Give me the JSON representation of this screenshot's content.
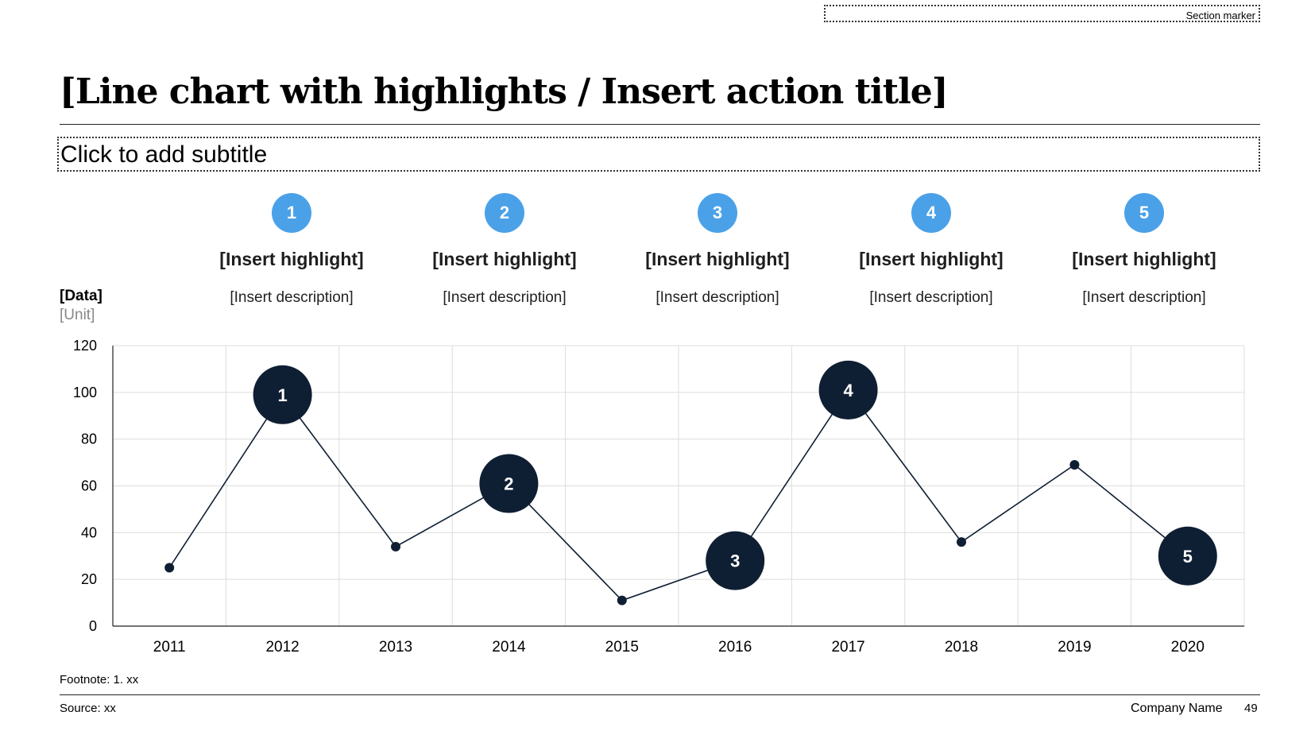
{
  "section_marker": "Section marker",
  "title": "[Line chart with highlights / Insert action title]",
  "subtitle": "Click to add subtitle",
  "highlights": [
    {
      "number": "1",
      "title": "[Insert highlight]",
      "description": "[Insert description]"
    },
    {
      "number": "2",
      "title": "[Insert highlight]",
      "description": "[Insert description]"
    },
    {
      "number": "3",
      "title": "[Insert highlight]",
      "description": "[Insert description]"
    },
    {
      "number": "4",
      "title": "[Insert highlight]",
      "description": "[Insert description]"
    },
    {
      "number": "5",
      "title": "[Insert highlight]",
      "description": "[Insert description]"
    }
  ],
  "colors": {
    "highlight_badge": "#4aa1e8",
    "marker": "#0f1f33",
    "line": "#0f1f33",
    "grid": "#dddddd"
  },
  "chart_data": {
    "type": "line",
    "ylabel": "[Data]",
    "yunit": "[Unit]",
    "categories": [
      "2011",
      "2012",
      "2013",
      "2014",
      "2015",
      "2016",
      "2017",
      "2018",
      "2019",
      "2020"
    ],
    "values": [
      25,
      99,
      34,
      61,
      11,
      28,
      101,
      36,
      69,
      30
    ],
    "highlighted_points": [
      {
        "category": "2012",
        "label": "1"
      },
      {
        "category": "2014",
        "label": "2"
      },
      {
        "category": "2016",
        "label": "3"
      },
      {
        "category": "2017",
        "label": "4"
      },
      {
        "category": "2020",
        "label": "5"
      }
    ],
    "ylim": [
      0,
      120
    ],
    "yticks": [
      0,
      20,
      40,
      60,
      80,
      100,
      120
    ],
    "grid": true,
    "legend": "none"
  },
  "footnote": "Footnote: 1. xx",
  "source": "Source: xx",
  "company": "Company Name",
  "page_number": "49"
}
